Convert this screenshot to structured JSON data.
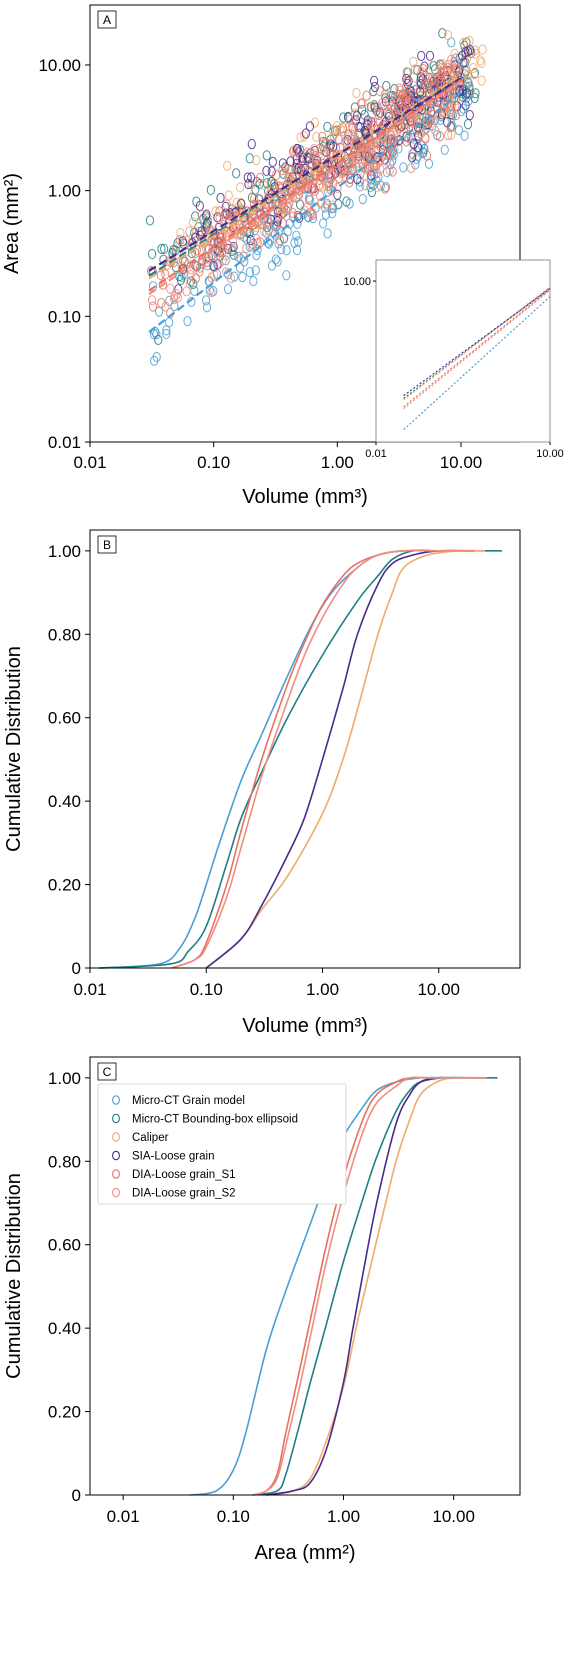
{
  "colors": {
    "micro_ct_grain_model": "#4a9fd4",
    "micro_ct_bounding_box": "#1f7f85",
    "caliper": "#f0aa6a",
    "sia_loose_grain": "#4a2a8c",
    "dia_loose_grain_s1": "#e8705f",
    "dia_loose_grain_s2": "#ef8e80"
  },
  "legend": {
    "items": [
      {
        "label": "Micro-CT Grain model",
        "color_key": "micro_ct_grain_model"
      },
      {
        "label": "Micro-CT Bounding-box ellipsoid",
        "color_key": "micro_ct_bounding_box"
      },
      {
        "label": "Caliper",
        "color_key": "caliper"
      },
      {
        "label": "SIA-Loose grain",
        "color_key": "sia_loose_grain"
      },
      {
        "label": "DIA-Loose grain_S1",
        "color_key": "dia_loose_grain_s1"
      },
      {
        "label": "DIA-Loose grain_S2",
        "color_key": "dia_loose_grain_s2"
      }
    ],
    "placement": "upper-left of panel C"
  },
  "chart_data": [
    {
      "panel": "A",
      "type": "scatter",
      "xlabel": "Volume (mm³)",
      "ylabel": "Area (mm²)",
      "xscale": "log",
      "yscale": "log",
      "xlim": [
        0.01,
        30
      ],
      "ylim": [
        0.01,
        30
      ],
      "xticks": [
        "0.01",
        "0.10",
        "1.00",
        "10.00"
      ],
      "yticks": [
        "0.01",
        "0.10",
        "1.00",
        "10.00"
      ],
      "grid": false,
      "series": [
        {
          "name": "Micro-CT Grain model",
          "color_key": "micro_ct_grain_model",
          "x_range": [
            0.03,
            12
          ],
          "fit_line": [
            [
              0.03,
              0.075
            ],
            [
              10,
              6.0
            ]
          ]
        },
        {
          "name": "Micro-CT Bounding-box ellipsoid",
          "color_key": "micro_ct_bounding_box",
          "x_range": [
            0.03,
            15
          ],
          "fit_line": [
            [
              0.03,
              0.21
            ],
            [
              10,
              8.0
            ]
          ]
        },
        {
          "name": "Caliper",
          "color_key": "caliper",
          "x_range": [
            0.05,
            15
          ],
          "fit_line": [
            [
              0.03,
              0.2
            ],
            [
              10,
              8.3
            ]
          ]
        },
        {
          "name": "SIA-Loose grain",
          "color_key": "sia_loose_grain",
          "x_range": [
            0.05,
            12
          ],
          "fit_line": [
            [
              0.03,
              0.23
            ],
            [
              10,
              7.8
            ]
          ]
        },
        {
          "name": "DIA-Loose grain_S1",
          "color_key": "dia_loose_grain_s1",
          "x_range": [
            0.03,
            10
          ],
          "fit_line": [
            [
              0.03,
              0.16
            ],
            [
              10,
              7.6
            ]
          ]
        },
        {
          "name": "DIA-Loose grain_S2",
          "color_key": "dia_loose_grain_s2",
          "x_range": [
            0.03,
            10
          ],
          "fit_line": [
            [
              0.03,
              0.15
            ],
            [
              10,
              7.4
            ]
          ]
        }
      ],
      "inset": {
        "type": "line",
        "xscale": "log",
        "yscale": "log",
        "xticks": [
          "0.01",
          "10.00"
        ],
        "yticks": [
          "10.00"
        ],
        "note": "fit lines only, dotted"
      }
    },
    {
      "panel": "B",
      "type": "line",
      "xlabel": "Volume (mm³)",
      "ylabel": "Cumulative Distribution",
      "xscale": "log",
      "xlim": [
        0.01,
        50
      ],
      "ylim": [
        0,
        1.05
      ],
      "xticks": [
        "0.01",
        "0.10",
        "1.00",
        "10.00"
      ],
      "yticks": [
        "0",
        "0.20",
        "0.40",
        "0.60",
        "0.80",
        "1.00"
      ],
      "grid": false,
      "series": [
        {
          "name": "Micro-CT Grain model",
          "color_key": "micro_ct_grain_model",
          "x": [
            0.012,
            0.04,
            0.06,
            0.08,
            0.1,
            0.13,
            0.2,
            0.3,
            0.5,
            0.8,
            1.2,
            2.0,
            3.0,
            5.0,
            10,
            20
          ],
          "y": [
            0,
            0.01,
            0.05,
            0.12,
            0.2,
            0.3,
            0.45,
            0.56,
            0.7,
            0.82,
            0.9,
            0.96,
            0.99,
            1.0,
            1.0,
            1.0
          ]
        },
        {
          "name": "Micro-CT Bounding-box ellipsoid",
          "color_key": "micro_ct_bounding_box",
          "x": [
            0.012,
            0.05,
            0.07,
            0.1,
            0.15,
            0.2,
            0.3,
            0.5,
            1.0,
            2.0,
            3.0,
            4.0,
            6.0,
            10,
            35
          ],
          "y": [
            0,
            0.01,
            0.04,
            0.1,
            0.25,
            0.36,
            0.47,
            0.6,
            0.75,
            0.88,
            0.94,
            0.98,
            1.0,
            1.0,
            1.0
          ]
        },
        {
          "name": "Caliper",
          "color_key": "caliper",
          "x": [
            0.1,
            0.2,
            0.3,
            0.5,
            1.0,
            1.5,
            2.0,
            3.0,
            4.0,
            5.0,
            8.0,
            15,
            25
          ],
          "y": [
            0,
            0.07,
            0.14,
            0.22,
            0.37,
            0.5,
            0.62,
            0.8,
            0.9,
            0.96,
            0.99,
            1.0,
            1.0
          ]
        },
        {
          "name": "SIA-Loose grain",
          "color_key": "sia_loose_grain",
          "x": [
            0.1,
            0.2,
            0.3,
            0.5,
            0.7,
            1.0,
            1.5,
            2.0,
            3.0,
            4.0,
            6.0,
            10,
            20
          ],
          "y": [
            0,
            0.07,
            0.15,
            0.27,
            0.36,
            0.5,
            0.67,
            0.8,
            0.92,
            0.97,
            0.99,
            1.0,
            1.0
          ]
        },
        {
          "name": "DIA-Loose grain_S1",
          "color_key": "dia_loose_grain_s1",
          "x": [
            0.05,
            0.08,
            0.1,
            0.15,
            0.2,
            0.3,
            0.5,
            0.7,
            1.0,
            1.5,
            2.0,
            3.0,
            5.0,
            10,
            20
          ],
          "y": [
            0,
            0.02,
            0.06,
            0.2,
            0.33,
            0.5,
            0.68,
            0.78,
            0.87,
            0.94,
            0.97,
            0.99,
            1.0,
            1.0,
            1.0
          ]
        },
        {
          "name": "DIA-Loose grain_S2",
          "color_key": "dia_loose_grain_s2",
          "x": [
            0.05,
            0.08,
            0.1,
            0.15,
            0.2,
            0.3,
            0.5,
            0.7,
            1.0,
            1.5,
            2.0,
            3.0,
            5.0,
            10,
            20
          ],
          "y": [
            0,
            0.02,
            0.05,
            0.17,
            0.29,
            0.46,
            0.64,
            0.75,
            0.84,
            0.92,
            0.96,
            0.99,
            1.0,
            1.0,
            1.0
          ]
        }
      ]
    },
    {
      "panel": "C",
      "type": "line",
      "xlabel": "Area (mm²)",
      "ylabel": "Cumulative Distribution",
      "xscale": "log",
      "xlim": [
        0.005,
        40
      ],
      "ylim": [
        0,
        1.05
      ],
      "xticks": [
        "0.01",
        "0.10",
        "1.00",
        "10.00"
      ],
      "yticks": [
        "0",
        "0.20",
        "0.40",
        "0.60",
        "0.80",
        "1.00"
      ],
      "grid": false,
      "series": [
        {
          "name": "Micro-CT Grain model",
          "color_key": "micro_ct_grain_model",
          "x": [
            0.04,
            0.07,
            0.1,
            0.13,
            0.2,
            0.3,
            0.5,
            0.8,
            1.0,
            1.5,
            2.0,
            3.0,
            5.0,
            10
          ],
          "y": [
            0,
            0.01,
            0.06,
            0.15,
            0.35,
            0.49,
            0.65,
            0.8,
            0.86,
            0.93,
            0.97,
            0.99,
            1.0,
            1.0
          ]
        },
        {
          "name": "Micro-CT Bounding-box ellipsoid",
          "color_key": "micro_ct_bounding_box",
          "x": [
            0.15,
            0.25,
            0.3,
            0.4,
            0.5,
            0.7,
            1.0,
            1.5,
            2.0,
            3.0,
            4.0,
            5.0,
            8.0,
            15,
            25
          ],
          "y": [
            0,
            0.01,
            0.05,
            0.17,
            0.27,
            0.41,
            0.56,
            0.71,
            0.81,
            0.92,
            0.97,
            0.99,
            1.0,
            1.0,
            1.0
          ]
        },
        {
          "name": "Caliper",
          "color_key": "caliper",
          "x": [
            0.2,
            0.35,
            0.5,
            0.7,
            1.0,
            1.3,
            1.5,
            2.0,
            3.0,
            4.0,
            5.0,
            7.0,
            10,
            20
          ],
          "y": [
            0,
            0.01,
            0.04,
            0.13,
            0.26,
            0.4,
            0.47,
            0.61,
            0.8,
            0.9,
            0.96,
            0.99,
            1.0,
            1.0
          ]
        },
        {
          "name": "SIA-Loose grain",
          "color_key": "sia_loose_grain",
          "x": [
            0.2,
            0.35,
            0.5,
            0.7,
            1.0,
            1.2,
            1.5,
            2.0,
            3.0,
            4.0,
            5.0,
            7.0,
            10,
            20
          ],
          "y": [
            0,
            0.01,
            0.03,
            0.11,
            0.27,
            0.39,
            0.53,
            0.7,
            0.89,
            0.96,
            0.99,
            1.0,
            1.0,
            1.0
          ]
        },
        {
          "name": "DIA-Loose grain_S1",
          "color_key": "dia_loose_grain_s1",
          "x": [
            0.15,
            0.2,
            0.25,
            0.3,
            0.4,
            0.5,
            0.7,
            1.0,
            1.5,
            2.0,
            3.0,
            4.0,
            6.0,
            10,
            20
          ],
          "y": [
            0,
            0.01,
            0.05,
            0.15,
            0.3,
            0.42,
            0.6,
            0.76,
            0.9,
            0.96,
            0.99,
            1.0,
            1.0,
            1.0,
            1.0
          ]
        },
        {
          "name": "DIA-Loose grain_S2",
          "color_key": "dia_loose_grain_s2",
          "x": [
            0.15,
            0.2,
            0.25,
            0.3,
            0.4,
            0.5,
            0.7,
            1.0,
            1.5,
            2.0,
            3.0,
            4.0,
            6.0,
            10,
            20
          ],
          "y": [
            0,
            0.01,
            0.04,
            0.12,
            0.26,
            0.38,
            0.56,
            0.72,
            0.87,
            0.94,
            0.98,
            1.0,
            1.0,
            1.0,
            1.0
          ]
        }
      ]
    }
  ]
}
